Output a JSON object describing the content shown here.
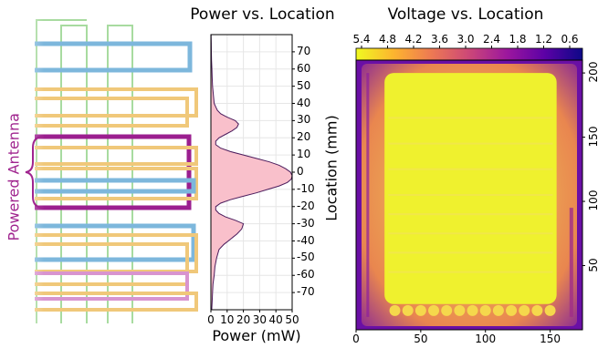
{
  "side_label": "Powered Antenna",
  "colors": {
    "blue": "#7db7dc",
    "orange": "#f0c87a",
    "green": "#a8dba0",
    "purple": "#9b1f8f",
    "pink_purple": "#d894cf",
    "accent_magenta": "#a0258f",
    "power_fill": "#f9c0cb",
    "power_line": "#4b1b5c"
  },
  "chart_data": [
    {
      "type": "area",
      "title": "Power vs. Location",
      "xlabel": "Power (mW)",
      "ylabel": "Location (mm)",
      "xlim": [
        0,
        50
      ],
      "ylim": [
        -80,
        80
      ],
      "xticks": [
        0,
        10,
        20,
        30,
        40,
        50
      ],
      "yticks": [
        70,
        60,
        50,
        40,
        30,
        20,
        10,
        0,
        -10,
        -20,
        -30,
        -40,
        -50,
        -60,
        -70
      ],
      "grid": true,
      "series": [
        {
          "location": [
            -80,
            -75,
            -70,
            -65,
            -60,
            -55,
            -50,
            -45,
            -42,
            -39,
            -36,
            -33,
            -30,
            -28,
            -26,
            -24,
            -22,
            -20,
            -18,
            -16,
            -14,
            -12,
            -10,
            -8,
            -6,
            -4,
            -2,
            0,
            2,
            4,
            6,
            8,
            10,
            12,
            14,
            16,
            18,
            20,
            22,
            24,
            26,
            28,
            30,
            32,
            34,
            36,
            38,
            40,
            45,
            50,
            55,
            60,
            65,
            70,
            75,
            80
          ],
          "power": [
            0.5,
            0.8,
            1,
            1.3,
            2,
            2.5,
            3.5,
            5,
            8,
            12,
            16,
            19,
            20,
            15,
            9,
            5,
            3,
            3,
            6,
            12,
            20,
            28,
            35,
            42,
            47,
            49.5,
            50,
            49,
            46,
            42,
            36,
            28,
            20,
            12,
            6,
            3,
            3,
            5,
            9,
            13,
            16,
            17,
            15,
            10,
            6,
            4,
            3,
            2,
            1.5,
            1,
            0.8,
            0.6,
            0.4,
            0.3,
            0.2,
            0.1
          ]
        }
      ]
    },
    {
      "type": "heatmap",
      "title": "Voltage vs. Location",
      "xlim": [
        0,
        175
      ],
      "ylim": [
        0,
        210
      ],
      "xticks": [
        0,
        50,
        100,
        150
      ],
      "yticks": [
        200,
        150,
        100,
        50
      ],
      "colorbar": {
        "ticks": [
          "5.4",
          "4.8",
          "4.2",
          "3.6",
          "3.0",
          "2.4",
          "1.8",
          "1.2",
          "0.6"
        ],
        "position": "top",
        "cmap_hex": [
          "#f0f921",
          "#fdb42f",
          "#ed7953",
          "#cc4778",
          "#9c179e",
          "#5c01a6",
          "#0d0887"
        ]
      }
    }
  ]
}
